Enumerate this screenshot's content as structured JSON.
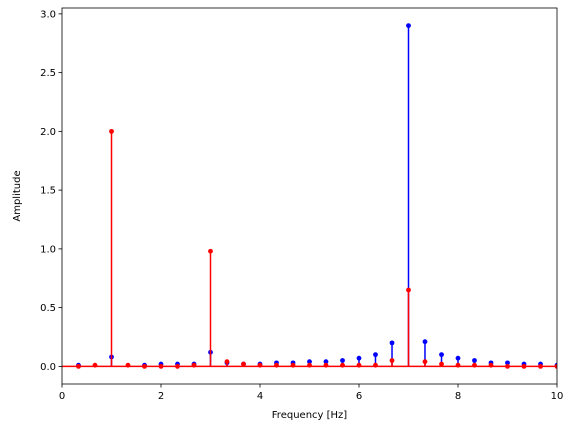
{
  "chart_data": {
    "type": "stem",
    "xlabel": "Frequency [Hz]",
    "ylabel": "Amplitude",
    "xlim": [
      0,
      10
    ],
    "ylim": [
      -0.15,
      3.05
    ],
    "xticks": [
      "0",
      "2",
      "4",
      "6",
      "8",
      "10"
    ],
    "yticks": [
      "0.0",
      "0.5",
      "1.0",
      "1.5",
      "2.0",
      "2.5",
      "3.0"
    ],
    "grid": false,
    "series": [
      {
        "color": "#0000ff",
        "x": [
          0.333,
          1.0,
          1.667,
          2.0,
          2.333,
          2.667,
          3.0,
          3.333,
          3.667,
          4.0,
          4.333,
          4.667,
          5.0,
          5.333,
          5.667,
          6.0,
          6.333,
          6.667,
          7.0,
          7.333,
          7.667,
          8.0,
          8.333,
          8.667,
          9.0,
          9.333,
          9.667,
          10.0
        ],
        "y": [
          0.01,
          0.08,
          0.01,
          0.02,
          0.02,
          0.02,
          0.12,
          0.03,
          0.02,
          0.02,
          0.03,
          0.03,
          0.04,
          0.04,
          0.05,
          0.07,
          0.1,
          0.2,
          2.9,
          0.21,
          0.1,
          0.07,
          0.05,
          0.03,
          0.03,
          0.02,
          0.02,
          0.01
        ]
      },
      {
        "color": "#ff0000",
        "x": [
          0.333,
          0.667,
          1.0,
          1.333,
          1.667,
          2.0,
          2.333,
          2.667,
          3.0,
          3.333,
          3.667,
          4.0,
          4.333,
          4.667,
          5.0,
          5.333,
          5.667,
          6.0,
          6.333,
          6.667,
          7.0,
          7.333,
          7.667,
          8.0,
          8.333,
          8.667,
          9.0,
          9.333,
          9.667,
          10.0
        ],
        "y": [
          0.0,
          0.01,
          2.0,
          0.01,
          0.0,
          0.0,
          0.0,
          0.01,
          0.98,
          0.04,
          0.02,
          0.01,
          0.01,
          0.01,
          0.01,
          0.01,
          0.01,
          0.01,
          0.01,
          0.05,
          0.65,
          0.04,
          0.02,
          0.01,
          0.01,
          0.01,
          0.0,
          0.0,
          0.0,
          0.0
        ]
      }
    ]
  }
}
